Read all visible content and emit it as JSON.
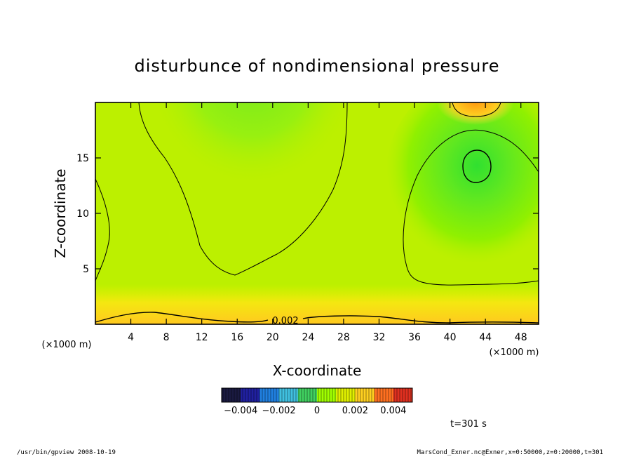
{
  "chart_data": {
    "type": "heatmap",
    "title": "disturbunce of nondimensional pressure",
    "xlabel": "X-coordinate",
    "ylabel": "Z-coordinate",
    "x_unit": "(×1000 m)",
    "y_unit": "(×1000 m)",
    "xlim": [
      0,
      50
    ],
    "ylim": [
      0,
      20
    ],
    "x_ticks": [
      4,
      8,
      12,
      16,
      20,
      24,
      28,
      32,
      36,
      40,
      44,
      48
    ],
    "y_ticks": [
      5,
      10,
      15
    ],
    "contour_label": "0.002",
    "contour_levels": [
      0,
      0.002
    ],
    "colorbar": {
      "min": -0.005,
      "max": 0.005,
      "tick_values": [
        -0.004,
        -0.002,
        0,
        0.002,
        0.004
      ],
      "tick_labels": [
        "−0.004",
        "−0.002",
        "0",
        "0.002",
        "0.004"
      ],
      "colors": [
        "#1a1a40",
        "#2020a0",
        "#2080e0",
        "#40c0e0",
        "#40d060",
        "#a0ff00",
        "#e0f000",
        "#ffd020",
        "#ff7020",
        "#e03020"
      ]
    },
    "field_features": [
      {
        "kind": "min",
        "x": 43,
        "z": 14.3,
        "value": -0.0006
      },
      {
        "kind": "min",
        "x": 18,
        "z": 17,
        "value": -0.0003
      },
      {
        "kind": "max",
        "x": 43,
        "z": 20,
        "value": 0.0035
      },
      {
        "kind": "max",
        "x": 6,
        "z": 0,
        "value": 0.0028
      },
      {
        "kind": "max",
        "x": 26,
        "z": 0,
        "value": 0.0025
      }
    ],
    "time_label": "t=301 s"
  },
  "footer": {
    "left": "/usr/bin/gpview  2008-10-19",
    "right": "MarsCond_Exner.nc@Exner,x=0:50000,z=0:20000,t=301"
  }
}
